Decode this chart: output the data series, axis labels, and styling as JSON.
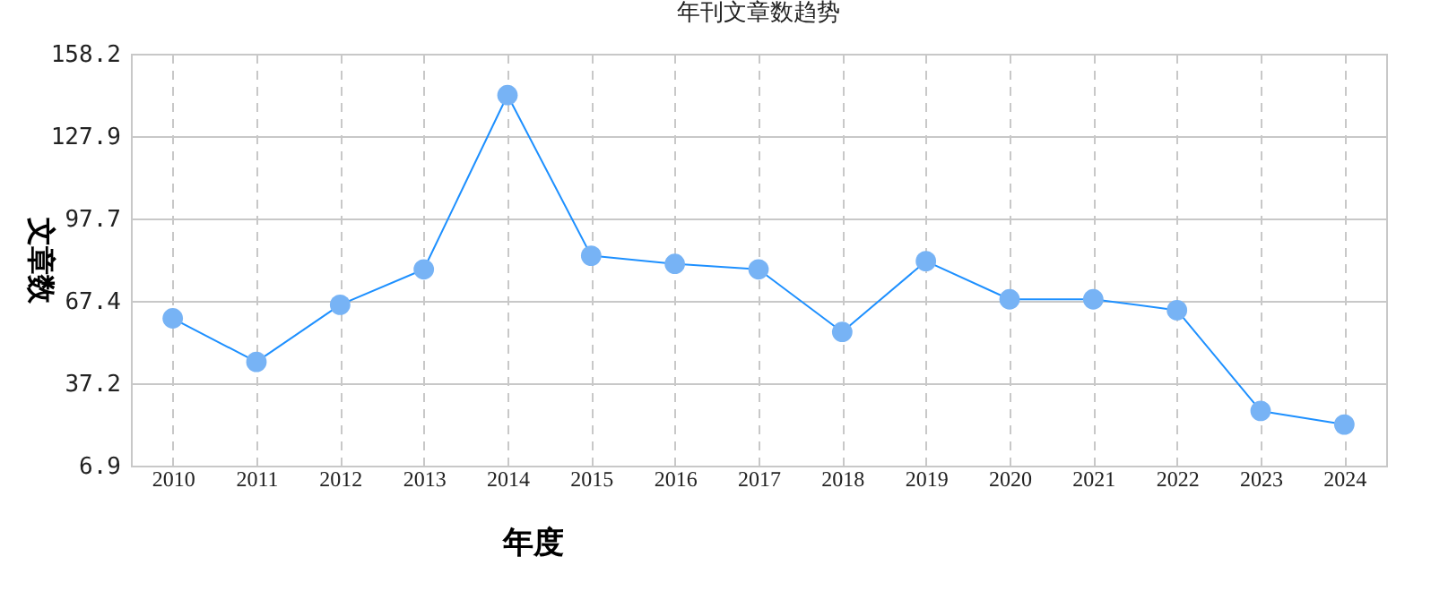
{
  "chart_data": {
    "type": "line",
    "title": "年刊文章数趋势",
    "xlabel": "年度",
    "ylabel": "文章数",
    "categories": [
      "2010",
      "2011",
      "2012",
      "2013",
      "2014",
      "2015",
      "2016",
      "2017",
      "2018",
      "2019",
      "2020",
      "2021",
      "2022",
      "2023",
      "2024"
    ],
    "series": [
      {
        "color": "#1e90ff",
        "values": [
          61,
          45,
          66,
          79,
          143,
          84,
          81,
          79,
          56,
          82,
          68,
          68,
          64,
          27,
          22
        ]
      }
    ],
    "ylim": [
      6.9,
      158.2
    ],
    "yticks": [
      6.9,
      37.2,
      67.4,
      97.7,
      127.9,
      158.2
    ],
    "grid": true,
    "marker": "circle",
    "line_style": "solid",
    "legend": false
  }
}
